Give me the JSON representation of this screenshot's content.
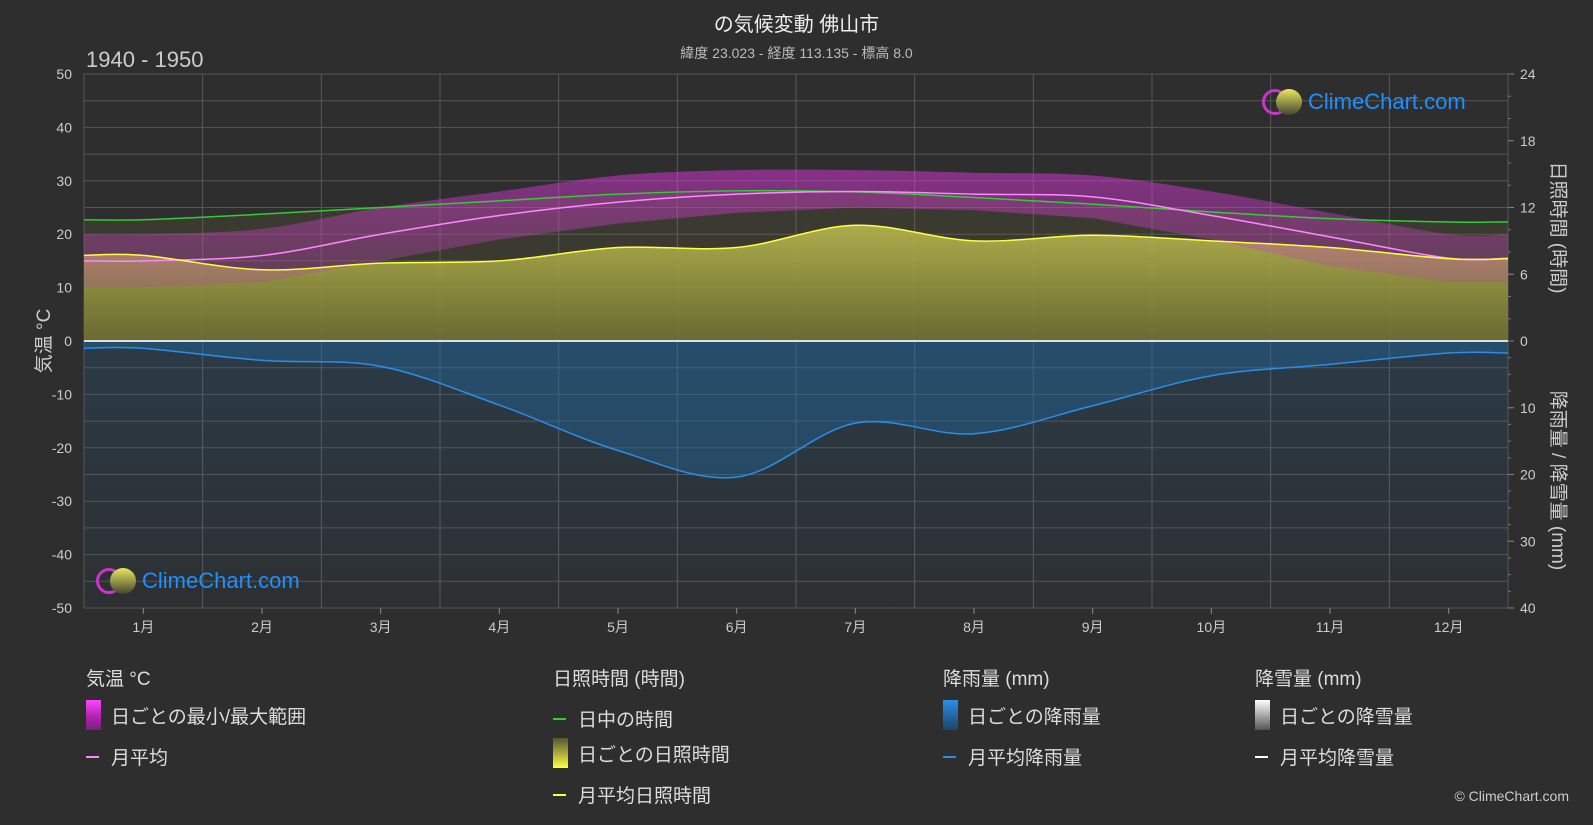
{
  "header": {
    "title": "の気候変動 佛山市",
    "subtitle": "緯度 23.023 - 経度 113.135 - 標高 8.0",
    "period": "1940 - 1950"
  },
  "brand": {
    "logo_text": "ClimeChart.com",
    "copyright": "© ClimeChart.com"
  },
  "colors": {
    "background": "#2e2e2e",
    "temp_range": "#cc22cc",
    "temp_avg": "#ff88ff",
    "daylight": "#33cc33",
    "sunshine_bar": "#b5b53a",
    "sunshine_avg": "#ffff44",
    "rain": "#1e6fb0",
    "rain_avg": "#2a8ee8",
    "snow_avg": "#ffffff"
  },
  "chart_data": {
    "type": "line",
    "months": [
      "1月",
      "2月",
      "3月",
      "4月",
      "5月",
      "6月",
      "7月",
      "8月",
      "9月",
      "10月",
      "11月",
      "12月"
    ],
    "axes": {
      "temp": {
        "label": "気温 °C",
        "min": -50,
        "max": 50,
        "ticks": [
          "50",
          "40",
          "30",
          "20",
          "10",
          "0",
          "-10",
          "-20",
          "-30",
          "-40",
          "-50"
        ]
      },
      "sun": {
        "label": "日照時間 (時間)",
        "min": 0,
        "max": 24,
        "ticks": [
          "24",
          "18",
          "12",
          "6",
          "0"
        ]
      },
      "rain": {
        "label": "降雨量 / 降雪量 (mm)",
        "min": 0,
        "max": 40,
        "ticks": [
          "0",
          "10",
          "20",
          "30",
          "40"
        ]
      }
    },
    "series": [
      {
        "name": "日中の時間",
        "axis": "sun",
        "values": [
          10.9,
          11.4,
          12.0,
          12.6,
          13.2,
          13.5,
          13.4,
          12.9,
          12.3,
          11.6,
          11.0,
          10.7
        ]
      },
      {
        "name": "月平均",
        "axis": "temp",
        "values": [
          15,
          16,
          20,
          23.5,
          26,
          27.5,
          28,
          27.5,
          27,
          23.5,
          19.5,
          15.5
        ]
      },
      {
        "name": "月平均日照時間",
        "axis": "sun",
        "values": [
          7.7,
          6.4,
          7.0,
          7.2,
          8.4,
          8.4,
          10.4,
          9.0,
          9.5,
          9.0,
          8.4,
          7.4
        ]
      },
      {
        "name": "月平均降雨量",
        "axis": "rain",
        "values": [
          1.1,
          2.9,
          3.8,
          9.6,
          16.4,
          20.4,
          12.3,
          13.9,
          9.7,
          5.2,
          3.5,
          1.8
        ]
      },
      {
        "name": "月平均降雪量",
        "axis": "rain",
        "values": [
          0,
          0,
          0,
          0,
          0,
          0,
          0,
          0,
          0,
          0,
          0,
          0
        ]
      }
    ],
    "daily_temp_range_approx": {
      "min": [
        10,
        11,
        15,
        19,
        22,
        24,
        25,
        24.5,
        23,
        19,
        14,
        11
      ],
      "max": [
        20,
        21,
        25,
        28,
        31,
        32,
        32,
        31.5,
        31,
        28,
        24,
        20
      ]
    },
    "grid": true
  },
  "legend": {
    "temp": {
      "heading": "気温 °C",
      "items": [
        "日ごとの最小/最大範囲",
        "月平均"
      ]
    },
    "sun": {
      "heading": "日照時間 (時間)",
      "items": [
        "日中の時間",
        "日ごとの日照時間",
        "月平均日照時間"
      ]
    },
    "rain": {
      "heading": "降雨量 (mm)",
      "items": [
        "日ごとの降雨量",
        "月平均降雨量"
      ]
    },
    "snow": {
      "heading": "降雪量 (mm)",
      "items": [
        "日ごとの降雪量",
        "月平均降雪量"
      ]
    }
  }
}
